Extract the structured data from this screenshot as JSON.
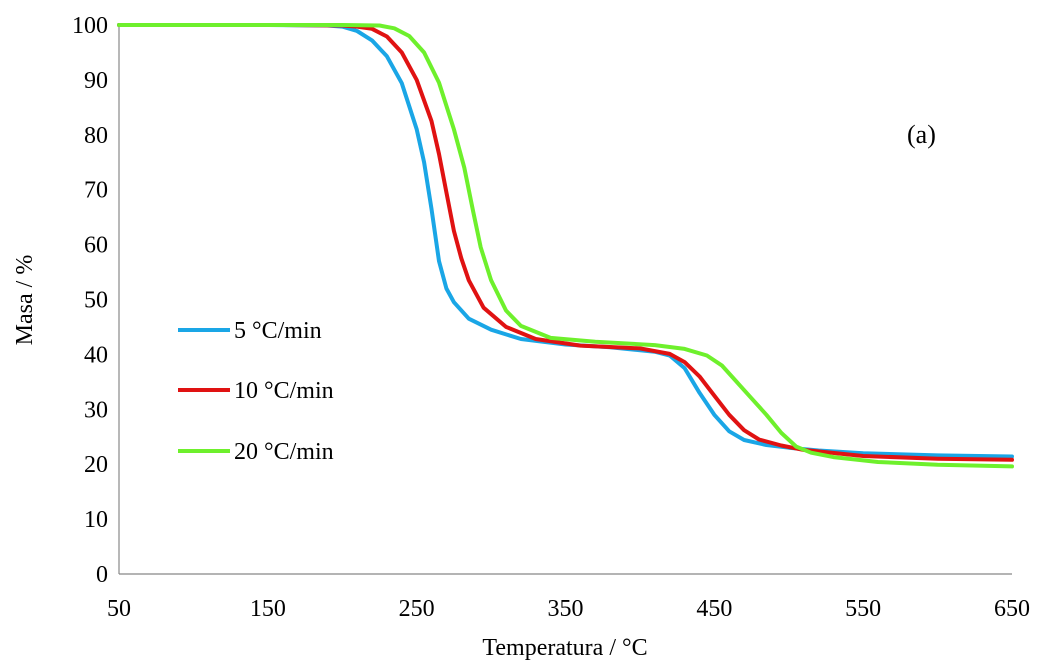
{
  "chart_data": {
    "type": "line",
    "xlabel": "Temperatura /  °C",
    "ylabel": "Masa / %",
    "xlim": [
      50,
      650
    ],
    "ylim": [
      0,
      100
    ],
    "x_ticks": [
      50,
      150,
      250,
      350,
      450,
      550,
      650
    ],
    "y_ticks": [
      0,
      10,
      20,
      30,
      40,
      50,
      60,
      70,
      80,
      90,
      100
    ],
    "grid": false,
    "legend_position": "left",
    "annotation": "(a)",
    "series": [
      {
        "name": "5 °C/min",
        "color": "#1aa6e6",
        "points": [
          [
            50,
            100
          ],
          [
            150,
            100
          ],
          [
            190,
            99.9
          ],
          [
            200,
            99.7
          ],
          [
            210,
            98.9
          ],
          [
            220,
            97.2
          ],
          [
            230,
            94.3
          ],
          [
            240,
            89.4
          ],
          [
            250,
            81.0
          ],
          [
            255,
            75.0
          ],
          [
            260,
            66.5
          ],
          [
            265,
            57.0
          ],
          [
            270,
            52.0
          ],
          [
            275,
            49.5
          ],
          [
            285,
            46.5
          ],
          [
            300,
            44.5
          ],
          [
            320,
            42.8
          ],
          [
            350,
            41.8
          ],
          [
            380,
            41.3
          ],
          [
            410,
            40.5
          ],
          [
            420,
            39.8
          ],
          [
            430,
            37.5
          ],
          [
            440,
            33.0
          ],
          [
            450,
            29.0
          ],
          [
            460,
            26.0
          ],
          [
            470,
            24.4
          ],
          [
            485,
            23.5
          ],
          [
            500,
            23.0
          ],
          [
            520,
            22.5
          ],
          [
            550,
            22.0
          ],
          [
            600,
            21.6
          ],
          [
            650,
            21.4
          ]
        ]
      },
      {
        "name": "10 °C/min",
        "color": "#e01212",
        "points": [
          [
            50,
            100
          ],
          [
            160,
            100
          ],
          [
            200,
            99.9
          ],
          [
            210,
            99.7
          ],
          [
            220,
            99.3
          ],
          [
            230,
            97.9
          ],
          [
            240,
            95.0
          ],
          [
            250,
            90.0
          ],
          [
            260,
            82.5
          ],
          [
            265,
            76.5
          ],
          [
            270,
            69.5
          ],
          [
            275,
            62.5
          ],
          [
            280,
            57.5
          ],
          [
            285,
            53.5
          ],
          [
            295,
            48.5
          ],
          [
            310,
            45.0
          ],
          [
            330,
            42.8
          ],
          [
            360,
            41.6
          ],
          [
            400,
            41.1
          ],
          [
            420,
            40.1
          ],
          [
            430,
            38.6
          ],
          [
            440,
            36.0
          ],
          [
            450,
            32.5
          ],
          [
            460,
            29.0
          ],
          [
            470,
            26.2
          ],
          [
            480,
            24.5
          ],
          [
            495,
            23.4
          ],
          [
            510,
            22.6
          ],
          [
            550,
            21.5
          ],
          [
            600,
            21.0
          ],
          [
            650,
            20.8
          ]
        ]
      },
      {
        "name": "20 °C/min",
        "color": "#6ef02c",
        "points": [
          [
            50,
            100
          ],
          [
            200,
            100
          ],
          [
            225,
            99.9
          ],
          [
            235,
            99.4
          ],
          [
            245,
            98.0
          ],
          [
            255,
            95.0
          ],
          [
            265,
            89.5
          ],
          [
            275,
            81.0
          ],
          [
            282,
            74.0
          ],
          [
            288,
            66.0
          ],
          [
            293,
            59.5
          ],
          [
            300,
            53.5
          ],
          [
            310,
            48.0
          ],
          [
            320,
            45.2
          ],
          [
            340,
            43.0
          ],
          [
            370,
            42.3
          ],
          [
            410,
            41.7
          ],
          [
            430,
            41.0
          ],
          [
            445,
            39.8
          ],
          [
            455,
            38.0
          ],
          [
            465,
            35.0
          ],
          [
            475,
            32.0
          ],
          [
            485,
            29.0
          ],
          [
            495,
            25.7
          ],
          [
            505,
            23.2
          ],
          [
            515,
            22.1
          ],
          [
            530,
            21.3
          ],
          [
            560,
            20.4
          ],
          [
            600,
            19.9
          ],
          [
            650,
            19.6
          ]
        ]
      }
    ]
  }
}
